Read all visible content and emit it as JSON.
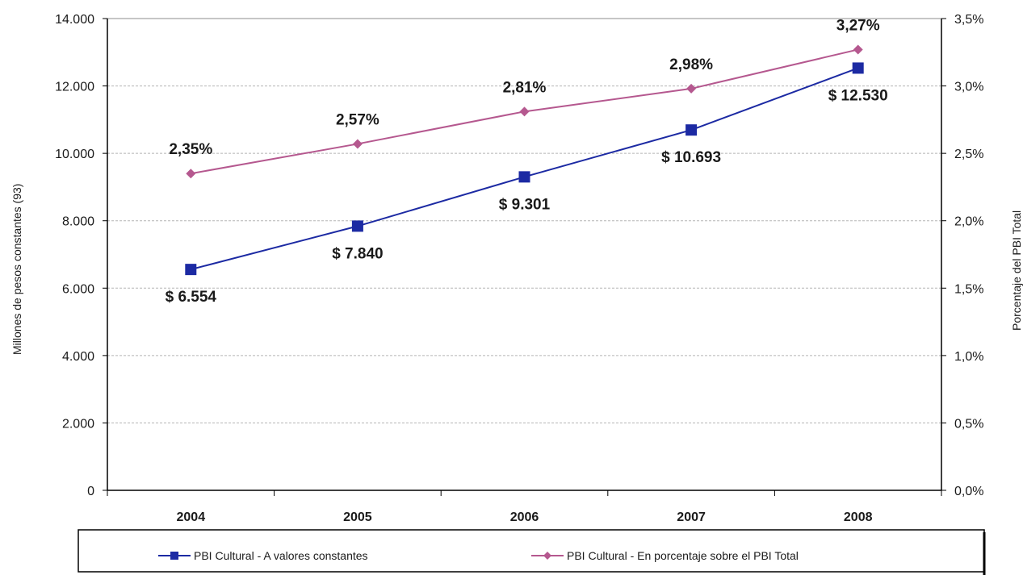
{
  "chart_data": {
    "type": "line",
    "categories": [
      "2004",
      "2005",
      "2006",
      "2007",
      "2008"
    ],
    "ylabel": "Millones de pesos constantes (93)",
    "y2label": "Porcentaje del PBI Total",
    "ylim": [
      0,
      14000
    ],
    "y2lim": [
      0,
      3.5
    ],
    "yticks": [
      "0",
      "2.000",
      "4.000",
      "6.000",
      "8.000",
      "10.000",
      "12.000",
      "14.000"
    ],
    "y2ticks": [
      "0,0%",
      "0,5%",
      "1,0%",
      "1,5%",
      "2,0%",
      "2,5%",
      "3,0%",
      "3,5%"
    ],
    "grid": true,
    "legend_position": "bottom",
    "series": [
      {
        "name": "PBI Cultural - A valores constantes",
        "axis": "left",
        "values": [
          6554,
          7840,
          9301,
          10693,
          12530
        ],
        "labels": [
          "$ 6.554",
          "$ 7.840",
          "$ 9.301",
          "$ 10.693",
          "$ 12.530"
        ],
        "color": "#1c2aa3",
        "marker": "square"
      },
      {
        "name": "PBI Cultural - En porcentaje sobre el PBI Total",
        "axis": "right",
        "values": [
          2.35,
          2.57,
          2.81,
          2.98,
          3.27
        ],
        "labels": [
          "2,35%",
          "2,57%",
          "2,81%",
          "2,98%",
          "3,27%"
        ],
        "color": "#b5588f",
        "marker": "diamond"
      }
    ]
  }
}
